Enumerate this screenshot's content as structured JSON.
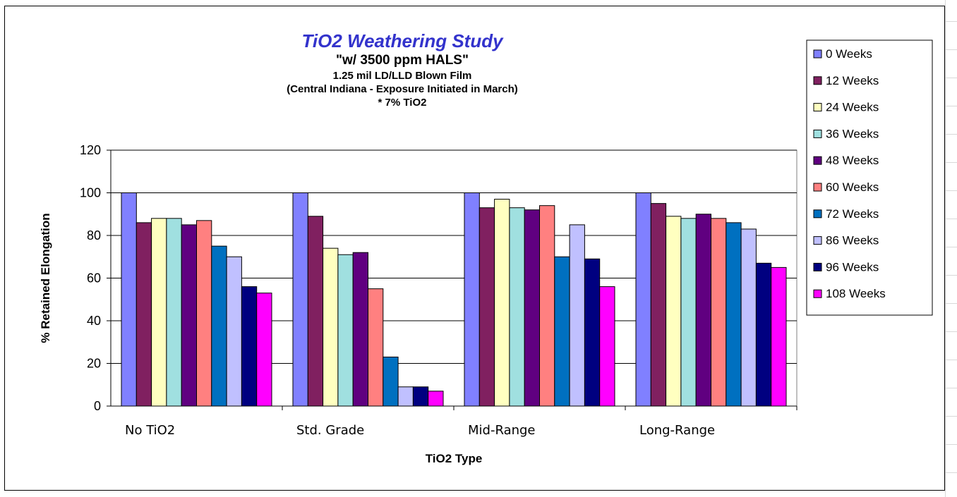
{
  "chart_data": {
    "type": "bar",
    "title": "TiO2 Weathering Study",
    "subtitle_lines": [
      "\"w/ 3500 ppm HALS\"",
      "1.25 mil LD/LLD Blown Film",
      "(Central Indiana - Exposure Initiated in March)",
      "* 7% TiO2"
    ],
    "xlabel": "TiO2 Type",
    "ylabel": "% Retained Elongation",
    "ylim": [
      0,
      120
    ],
    "yticks": [
      0,
      20,
      40,
      60,
      80,
      100,
      120
    ],
    "grid": true,
    "legend_position": "right",
    "categories": [
      "No TiO2",
      "Std. Grade",
      "Mid-Range",
      "Long-Range"
    ],
    "series": [
      {
        "name": "0 Weeks",
        "color": "#8080ff",
        "values": [
          100,
          100,
          100,
          100
        ]
      },
      {
        "name": "12 Weeks",
        "color": "#802060",
        "values": [
          86,
          89,
          93,
          95
        ]
      },
      {
        "name": "24 Weeks",
        "color": "#ffffc0",
        "values": [
          88,
          74,
          97,
          89
        ]
      },
      {
        "name": "36 Weeks",
        "color": "#a0e0e0",
        "values": [
          88,
          71,
          93,
          88
        ]
      },
      {
        "name": "48 Weeks",
        "color": "#600080",
        "values": [
          85,
          72,
          92,
          90
        ]
      },
      {
        "name": "60 Weeks",
        "color": "#ff8080",
        "values": [
          87,
          55,
          94,
          88
        ]
      },
      {
        "name": "72 Weeks",
        "color": "#0070c0",
        "values": [
          75,
          23,
          70,
          86
        ]
      },
      {
        "name": "86 Weeks",
        "color": "#c0c0ff",
        "values": [
          70,
          9,
          85,
          83
        ]
      },
      {
        "name": "96 Weeks",
        "color": "#000080",
        "values": [
          56,
          9,
          69,
          67
        ]
      },
      {
        "name": "108 Weeks",
        "color": "#ff00ff",
        "values": [
          53,
          7,
          56,
          65
        ]
      }
    ]
  }
}
